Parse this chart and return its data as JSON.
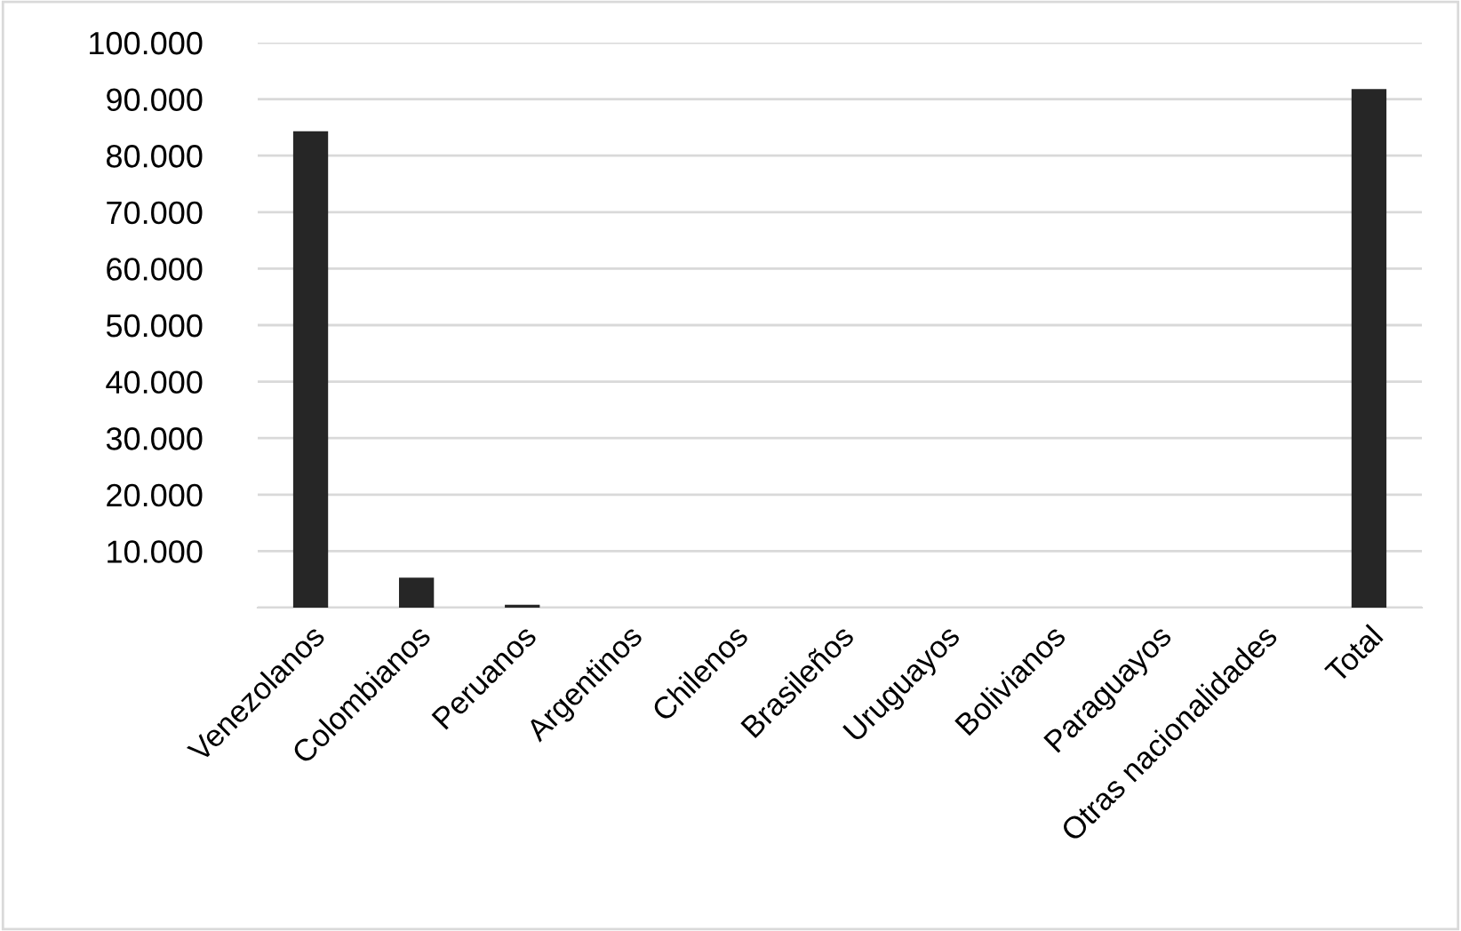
{
  "chart_data": {
    "type": "bar",
    "categories": [
      "Venezolanos",
      "Colombianos",
      "Peruanos",
      "Argentinos",
      "Chilenos",
      "Brasileños",
      "Uruguayos",
      "Bolivianos",
      "Paraguayos",
      "Otras nacionalidades",
      "Total"
    ],
    "values": [
      84300,
      5300,
      500,
      0,
      0,
      0,
      0,
      0,
      0,
      0,
      91800
    ],
    "color": "#262626",
    "ylim": [
      0,
      100000
    ],
    "yticks": [
      {
        "value": 0,
        "label": null
      },
      {
        "value": 10000,
        "label": "10.000"
      },
      {
        "value": 20000,
        "label": "20.000"
      },
      {
        "value": 30000,
        "label": "30.000"
      },
      {
        "value": 40000,
        "label": "40.000"
      },
      {
        "value": 50000,
        "label": "50.000"
      },
      {
        "value": 60000,
        "label": "60.000"
      },
      {
        "value": 70000,
        "label": "70.000"
      },
      {
        "value": 80000,
        "label": "80.000"
      },
      {
        "value": 90000,
        "label": "90.000"
      },
      {
        "value": 100000,
        "label": "100.000"
      }
    ],
    "grid": "y"
  }
}
